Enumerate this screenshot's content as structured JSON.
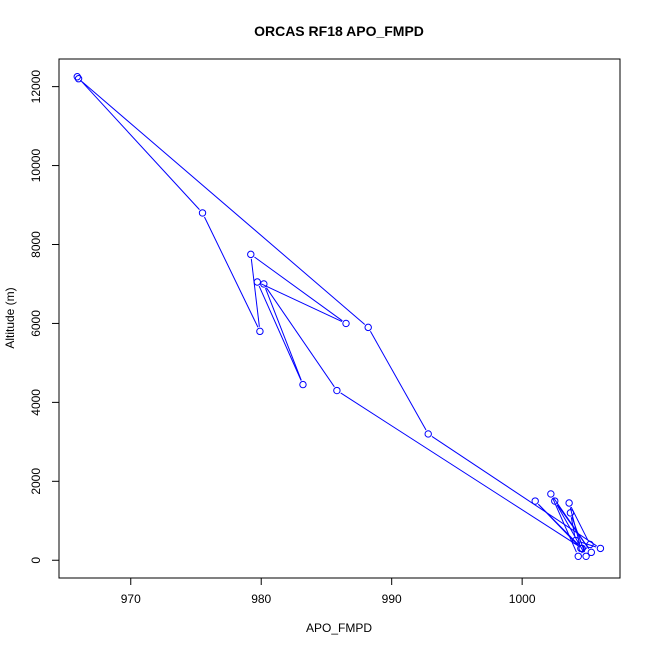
{
  "chart_data": {
    "type": "scatter",
    "title": "ORCAS RF18 APO_FMPD",
    "xlabel": "APO_FMPD",
    "ylabel": "Altitude (m)",
    "xlim": [
      964.5,
      1007.5
    ],
    "ylim": [
      -450,
      12700
    ],
    "xticks": [
      970,
      980,
      990,
      1000
    ],
    "yticks": [
      0,
      2000,
      4000,
      6000,
      8000,
      10000,
      12000
    ],
    "grid": false,
    "legend": "none",
    "series": [
      {
        "line_color": "#0000ff",
        "marker": "open-circle",
        "x": [
          965.9,
          975.5,
          979.9,
          979.2,
          986.5,
          979.7,
          983.2,
          980.2,
          985.8,
          1004.6,
          1001.0,
          1004.5,
          1003.6,
          1005.2,
          1004.3,
          1002.2,
          1005.3,
          1002.5,
          1004.9,
          1003.7,
          1004.1,
          1006.0,
          992.8,
          988.2,
          966.0
        ],
        "y": [
          12250,
          8800,
          5800,
          7750,
          6000,
          7050,
          4450,
          7000,
          4300,
          300,
          1500,
          300,
          1450,
          400,
          100,
          1680,
          200,
          1500,
          100,
          1200,
          500,
          300,
          3200,
          5900,
          12200
        ]
      }
    ]
  }
}
